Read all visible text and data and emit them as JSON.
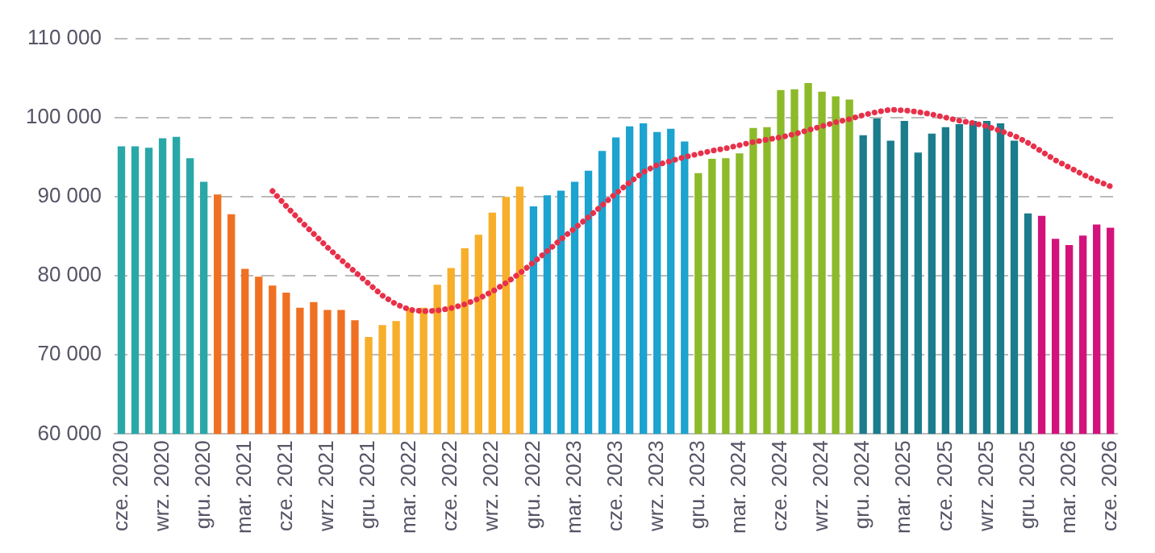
{
  "chart_data": {
    "type": "bar",
    "categories": [
      "cze. 2020",
      null,
      null,
      "wrz. 2020",
      null,
      null,
      "gru. 2020",
      null,
      null,
      "mar. 2021",
      null,
      null,
      "cze. 2021",
      null,
      null,
      "wrz. 2021",
      null,
      null,
      "gru. 2021",
      null,
      null,
      "mar. 2022",
      null,
      null,
      "cze. 2022",
      null,
      null,
      "wrz. 2022",
      null,
      null,
      "gru. 2022",
      null,
      null,
      "mar. 2023",
      null,
      null,
      "cze. 2023",
      null,
      null,
      "wrz. 2023",
      null,
      null,
      "gru. 2023",
      null,
      null,
      "mar. 2024",
      null,
      null,
      "cze. 2024",
      null,
      null,
      "wrz. 2024",
      null,
      null,
      "gru. 2024",
      null,
      null,
      "mar. 2025",
      null,
      null,
      "cze. 2025",
      null,
      null,
      "wrz. 2025",
      null,
      null,
      "gru. 2025",
      null,
      null,
      "mar. 2026",
      null,
      null,
      "cze. 2026"
    ],
    "series": [
      {
        "colors": [
          "#2aa8a8",
          "#2aa8a8",
          "#2aa8a8",
          "#2aa8a8",
          "#2aa8a8",
          "#2aa8a8",
          "#2aa8a8",
          "#f07022",
          "#f07022",
          "#f07022",
          "#f07022",
          "#f07022",
          "#f07022",
          "#f07022",
          "#f07022",
          "#f07022",
          "#f07022",
          "#f07022",
          "#f7ae2a",
          "#f7ae2a",
          "#f7ae2a",
          "#f7ae2a",
          "#f7ae2a",
          "#f7ae2a",
          "#f7ae2a",
          "#f7ae2a",
          "#f7ae2a",
          "#f7ae2a",
          "#f7ae2a",
          "#f7ae2a",
          "#1ca3cf",
          "#1ca3cf",
          "#1ca3cf",
          "#1ca3cf",
          "#1ca3cf",
          "#1ca3cf",
          "#1ca3cf",
          "#1ca3cf",
          "#1ca3cf",
          "#1ca3cf",
          "#1ca3cf",
          "#1ca3cf",
          "#8cba2a",
          "#8cba2a",
          "#8cba2a",
          "#8cba2a",
          "#8cba2a",
          "#8cba2a",
          "#8cba2a",
          "#8cba2a",
          "#8cba2a",
          "#8cba2a",
          "#8cba2a",
          "#8cba2a",
          "#1b7c8c",
          "#1b7c8c",
          "#1b7c8c",
          "#1b7c8c",
          "#1b7c8c",
          "#1b7c8c",
          "#1b7c8c",
          "#1b7c8c",
          "#1b7c8c",
          "#1b7c8c",
          "#1b7c8c",
          "#1b7c8c",
          "#1b7c8c",
          "#d3127c",
          "#d3127c",
          "#d3127c",
          "#d3127c",
          "#d3127c",
          "#d3127c"
        ],
        "values": [
          96300,
          96300,
          96100,
          97300,
          97500,
          94800,
          91800,
          90200,
          87700,
          80800,
          79800,
          78700,
          77800,
          75900,
          76600,
          75600,
          75600,
          74300,
          72200,
          73700,
          74200,
          75900,
          75900,
          78800,
          80900,
          83400,
          85100,
          87900,
          89900,
          91200,
          88700,
          90100,
          90700,
          91800,
          93200,
          95700,
          97400,
          98800,
          99200,
          98100,
          98500,
          96900,
          92900,
          94700,
          94800,
          95400,
          98600,
          98700,
          103400,
          103500,
          104300,
          103200,
          102600,
          102200,
          97700,
          99800,
          97000,
          99500,
          95500,
          97900,
          98700,
          99100,
          99500,
          99500,
          99200,
          97000,
          87800,
          87500,
          84600,
          83800,
          85000,
          86400,
          86000
        ]
      },
      {
        "type": "line",
        "color": "#e8304a",
        "line_style": "dotted",
        "marker": "none",
        "values": [
          null,
          null,
          null,
          null,
          null,
          null,
          null,
          null,
          null,
          null,
          null,
          90700,
          88800,
          87000,
          85300,
          83600,
          82000,
          80500,
          79000,
          77500,
          76400,
          75700,
          75500,
          75600,
          75900,
          76400,
          77100,
          78000,
          79100,
          80300,
          81700,
          83100,
          84600,
          86000,
          87400,
          88900,
          90400,
          91800,
          93100,
          94000,
          94500,
          95000,
          95400,
          95800,
          96100,
          96500,
          96900,
          97200,
          97500,
          97900,
          98400,
          98900,
          99400,
          99800,
          100300,
          100700,
          101000,
          100900,
          100700,
          100400,
          100000,
          99600,
          99300,
          98900,
          98300,
          97700,
          96800,
          95700,
          94600,
          93700,
          92800,
          92000,
          91300
        ]
      }
    ],
    "ylim": [
      60000,
      110000
    ],
    "yticks": [
      {
        "value": 60000,
        "label": "60 000"
      },
      {
        "value": 70000,
        "label": "70 000"
      },
      {
        "value": 80000,
        "label": "80 000"
      },
      {
        "value": 90000,
        "label": "90 000"
      },
      {
        "value": 100000,
        "label": "100 000"
      },
      {
        "value": 110000,
        "label": "110 000"
      }
    ],
    "grid": "y",
    "legend": false
  }
}
